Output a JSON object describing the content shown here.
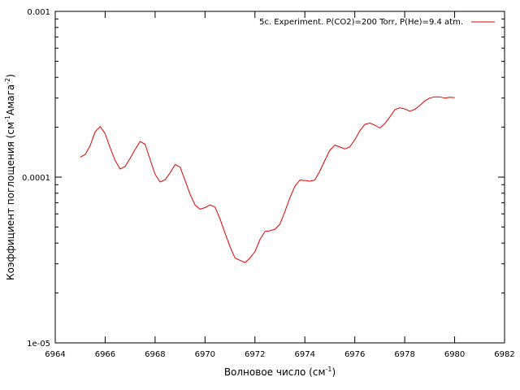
{
  "chart_data": {
    "type": "line",
    "title": "",
    "xlabel": {
      "main": "Волновое число (см",
      "sup": "-1",
      "tail": ")"
    },
    "ylabel": {
      "main": "Коэффициент поглощения (см",
      "sup1": "-1",
      "mid": "Амага",
      "sup2": "-2",
      "tail": ")"
    },
    "xlim": [
      6964,
      6982
    ],
    "ylim": [
      1e-05,
      0.001
    ],
    "yscale": "log",
    "grid": false,
    "legend_position": "top-right",
    "x_ticks": [
      6964,
      6966,
      6968,
      6970,
      6972,
      6974,
      6976,
      6978,
      6980,
      6982
    ],
    "x_tick_labels": [
      "6964",
      "6966",
      "6968",
      "6970",
      "6972",
      "6974",
      "6976",
      "6978",
      "6980",
      "6982"
    ],
    "y_ticks": [
      1e-05,
      0.0001,
      0.001
    ],
    "y_tick_labels": [
      "1e-05",
      "0.0001",
      "0.001"
    ],
    "series": [
      {
        "name": "5c. Experiment. P(CO2)=200 Torr, P(He)=9.4 atm.",
        "color": "#dd0000",
        "x": [
          6965.0,
          6965.2,
          6965.4,
          6965.6,
          6965.8,
          6966.0,
          6966.2,
          6966.4,
          6966.6,
          6966.8,
          6967.0,
          6967.2,
          6967.4,
          6967.6,
          6967.8,
          6968.0,
          6968.2,
          6968.4,
          6968.6,
          6968.8,
          6969.0,
          6969.2,
          6969.4,
          6969.6,
          6969.8,
          6970.0,
          6970.2,
          6970.4,
          6970.6,
          6970.8,
          6971.0,
          6971.2,
          6971.4,
          6971.6,
          6971.8,
          6972.0,
          6972.2,
          6972.4,
          6972.6,
          6972.8,
          6973.0,
          6973.2,
          6973.4,
          6973.6,
          6973.8,
          6974.0,
          6974.2,
          6974.4,
          6974.6,
          6974.8,
          6975.0,
          6975.2,
          6975.4,
          6975.6,
          6975.8,
          6976.0,
          6976.2,
          6976.4,
          6976.6,
          6976.8,
          6977.0,
          6977.2,
          6977.4,
          6977.6,
          6977.8,
          6978.0,
          6978.2,
          6978.4,
          6978.6,
          6978.8,
          6979.0,
          6979.2,
          6979.4,
          6979.6,
          6979.8,
          6980.0
        ],
        "y": [
          0.000132,
          0.000137,
          0.000155,
          0.000188,
          0.000202,
          0.000183,
          0.00015,
          0.000126,
          0.000112,
          0.000116,
          0.00013,
          0.000147,
          0.000164,
          0.000158,
          0.000128,
          0.000104,
          9.35e-05,
          9.65e-05,
          0.000106,
          0.000119,
          0.000115,
          9.55e-05,
          7.9e-05,
          6.8e-05,
          6.4e-05,
          6.55e-05,
          6.8e-05,
          6.6e-05,
          5.6e-05,
          4.6e-05,
          3.8e-05,
          3.25e-05,
          3.15e-05,
          3.05e-05,
          3.25e-05,
          3.55e-05,
          4.2e-05,
          4.7e-05,
          4.75e-05,
          4.85e-05,
          5.2e-05,
          6.2e-05,
          7.5e-05,
          8.8e-05,
          9.6e-05,
          9.55e-05,
          9.45e-05,
          9.6e-05,
          0.000109,
          0.000126,
          0.000145,
          0.000156,
          0.000152,
          0.000148,
          0.000152,
          0.000168,
          0.00019,
          0.000208,
          0.000212,
          0.000206,
          0.000198,
          0.00021,
          0.00023,
          0.000255,
          0.000262,
          0.000258,
          0.00025,
          0.000256,
          0.00027,
          0.000288,
          0.0003,
          0.000305,
          0.000305,
          0.0003,
          0.000303,
          0.000302
        ]
      }
    ]
  }
}
